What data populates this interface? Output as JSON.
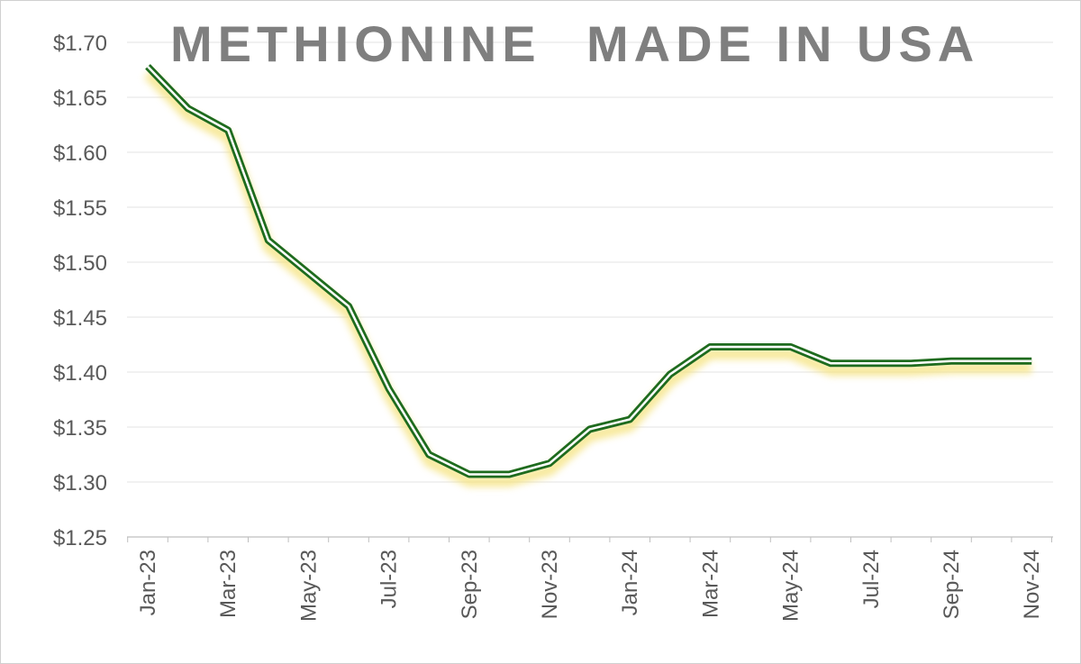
{
  "chart_data": {
    "type": "line",
    "title_left": "METHIONINE",
    "title_right": "MADE IN USA",
    "xlabel": "",
    "ylabel": "",
    "ylim": [
      1.25,
      1.7
    ],
    "y_ticks": [
      "$1.25",
      "$1.30",
      "$1.35",
      "$1.40",
      "$1.45",
      "$1.50",
      "$1.55",
      "$1.60",
      "$1.65",
      "$1.70"
    ],
    "x_tick_labels": [
      "Jan-23",
      "Mar-23",
      "May-23",
      "Jul-23",
      "Sep-23",
      "Nov-23",
      "Jan-24",
      "Mar-24",
      "May-24",
      "Jul-24",
      "Sep-24",
      "Nov-24"
    ],
    "grid": "horizontal",
    "legend": "none",
    "series": [
      {
        "color": "#1e6b1e",
        "glow": "#f5e27a",
        "x": [
          "Jan-23",
          "Feb-23",
          "Mar-23",
          "Apr-23",
          "May-23",
          "Jun-23",
          "Jul-23",
          "Aug-23",
          "Sep-23",
          "Oct-23",
          "Nov-23",
          "Dec-23",
          "Jan-24",
          "Feb-24",
          "Mar-24",
          "Apr-24",
          "May-24",
          "Jun-24",
          "Jul-24",
          "Aug-24",
          "Sep-24",
          "Oct-24",
          "Nov-24"
        ],
        "values": [
          1.678,
          1.64,
          1.62,
          1.52,
          1.49,
          1.46,
          1.385,
          1.325,
          1.307,
          1.307,
          1.317,
          1.348,
          1.357,
          1.398,
          1.423,
          1.423,
          1.423,
          1.408,
          1.408,
          1.408,
          1.41,
          1.41,
          1.41
        ]
      }
    ]
  }
}
